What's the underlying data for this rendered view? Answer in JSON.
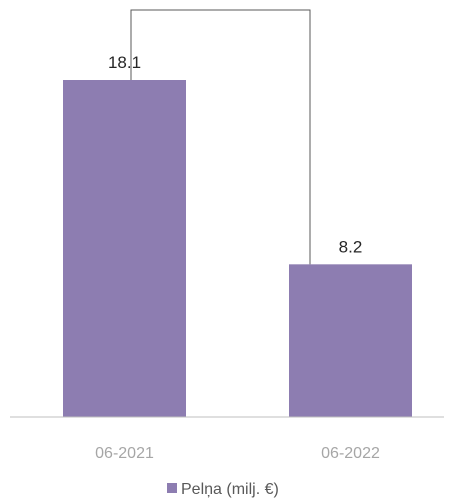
{
  "chart_data": {
    "type": "bar",
    "categories": [
      "06-2021",
      "06-2022"
    ],
    "series": [
      {
        "name": "Pelņa (milj. €)",
        "values": [
          18.1,
          8.2
        ],
        "color": "#8d7db1"
      }
    ],
    "data_labels": [
      "18.1",
      "8.2"
    ],
    "ylim": [
      0,
      18.1
    ],
    "grid": false,
    "legend_position": "bottom-center",
    "axis_color": "#bfbfbf",
    "connector_color": "#595959",
    "connector": "bracket linking the top of both bars"
  }
}
